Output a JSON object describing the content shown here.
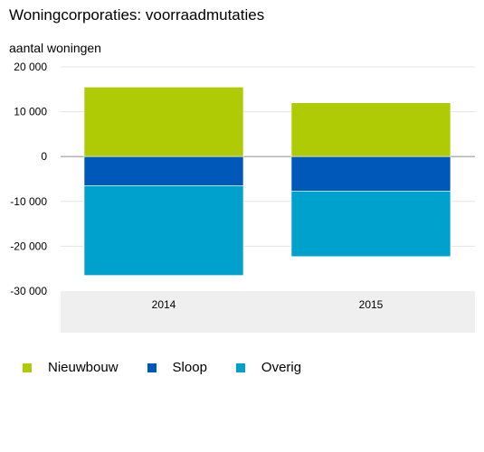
{
  "title": "Woningcorporaties: voorraadmutaties",
  "unit_label": "aantal woningen",
  "chart_data": {
    "type": "bar",
    "stacked": true,
    "categories": [
      "2014",
      "2015"
    ],
    "series": [
      {
        "name": "Nieuwbouw",
        "color": "#afcb05",
        "values": [
          15500,
          12000
        ]
      },
      {
        "name": "Sloop",
        "color": "#0058b8",
        "values": [
          -6500,
          -7700
        ]
      },
      {
        "name": "Overig",
        "color": "#00a1cd",
        "values": [
          -20000,
          -14600
        ]
      }
    ],
    "ylim": [
      -30000,
      20000
    ],
    "yticks": [
      20000,
      10000,
      0,
      -10000,
      -20000,
      -30000
    ],
    "ytick_labels": [
      "20 000",
      "10 000",
      "0",
      "-10 000",
      "-20 000",
      "-30 000"
    ],
    "grid": true,
    "legend_position": "bottom-left"
  }
}
